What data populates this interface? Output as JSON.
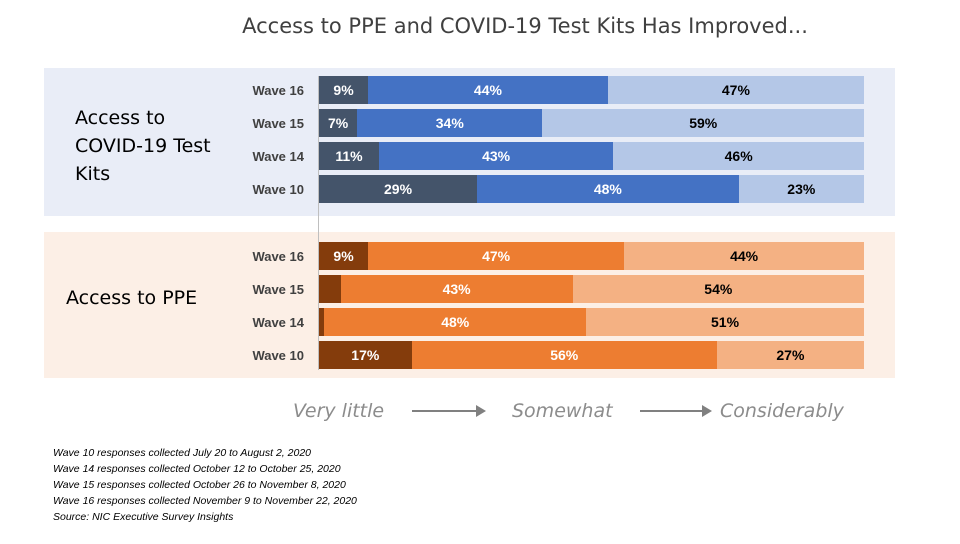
{
  "chart_data": {
    "type": "bar",
    "title": "Access to PPE and COVID-19 Test Kits Has Improved...",
    "scale_labels": [
      "Very little",
      "Somewhat",
      "Considerably"
    ],
    "groups": [
      {
        "label": "Access to COVID-19 Test Kits",
        "colors": [
          "#44546a",
          "#4472c4",
          "#b4c7e7"
        ],
        "rows": [
          {
            "wave": "Wave 16",
            "values": [
              9,
              44,
              47
            ]
          },
          {
            "wave": "Wave 15",
            "values": [
              7,
              34,
              59
            ]
          },
          {
            "wave": "Wave 14",
            "values": [
              11,
              43,
              46
            ]
          },
          {
            "wave": "Wave 10",
            "values": [
              29,
              48,
              23
            ]
          }
        ]
      },
      {
        "label": "Access to PPE",
        "colors": [
          "#843c0c",
          "#ed7d31",
          "#f4b183"
        ],
        "rows": [
          {
            "wave": "Wave 16",
            "values": [
              9,
              47,
              44
            ]
          },
          {
            "wave": "Wave 15",
            "values": [
              4,
              43,
              54
            ]
          },
          {
            "wave": "Wave 14",
            "values": [
              1,
              48,
              51
            ]
          },
          {
            "wave": "Wave 10",
            "values": [
              17,
              56,
              27
            ]
          }
        ]
      }
    ],
    "footnotes": [
      "Wave 10 responses collected July 20 to August 2, 2020",
      "Wave 14 responses collected October 12 to October 25, 2020",
      "Wave 15 responses collected October 26 to November 8, 2020",
      "Wave 16 responses collected November 9 to November 22, 2020",
      "Source: NIC Executive Survey Insights"
    ]
  }
}
